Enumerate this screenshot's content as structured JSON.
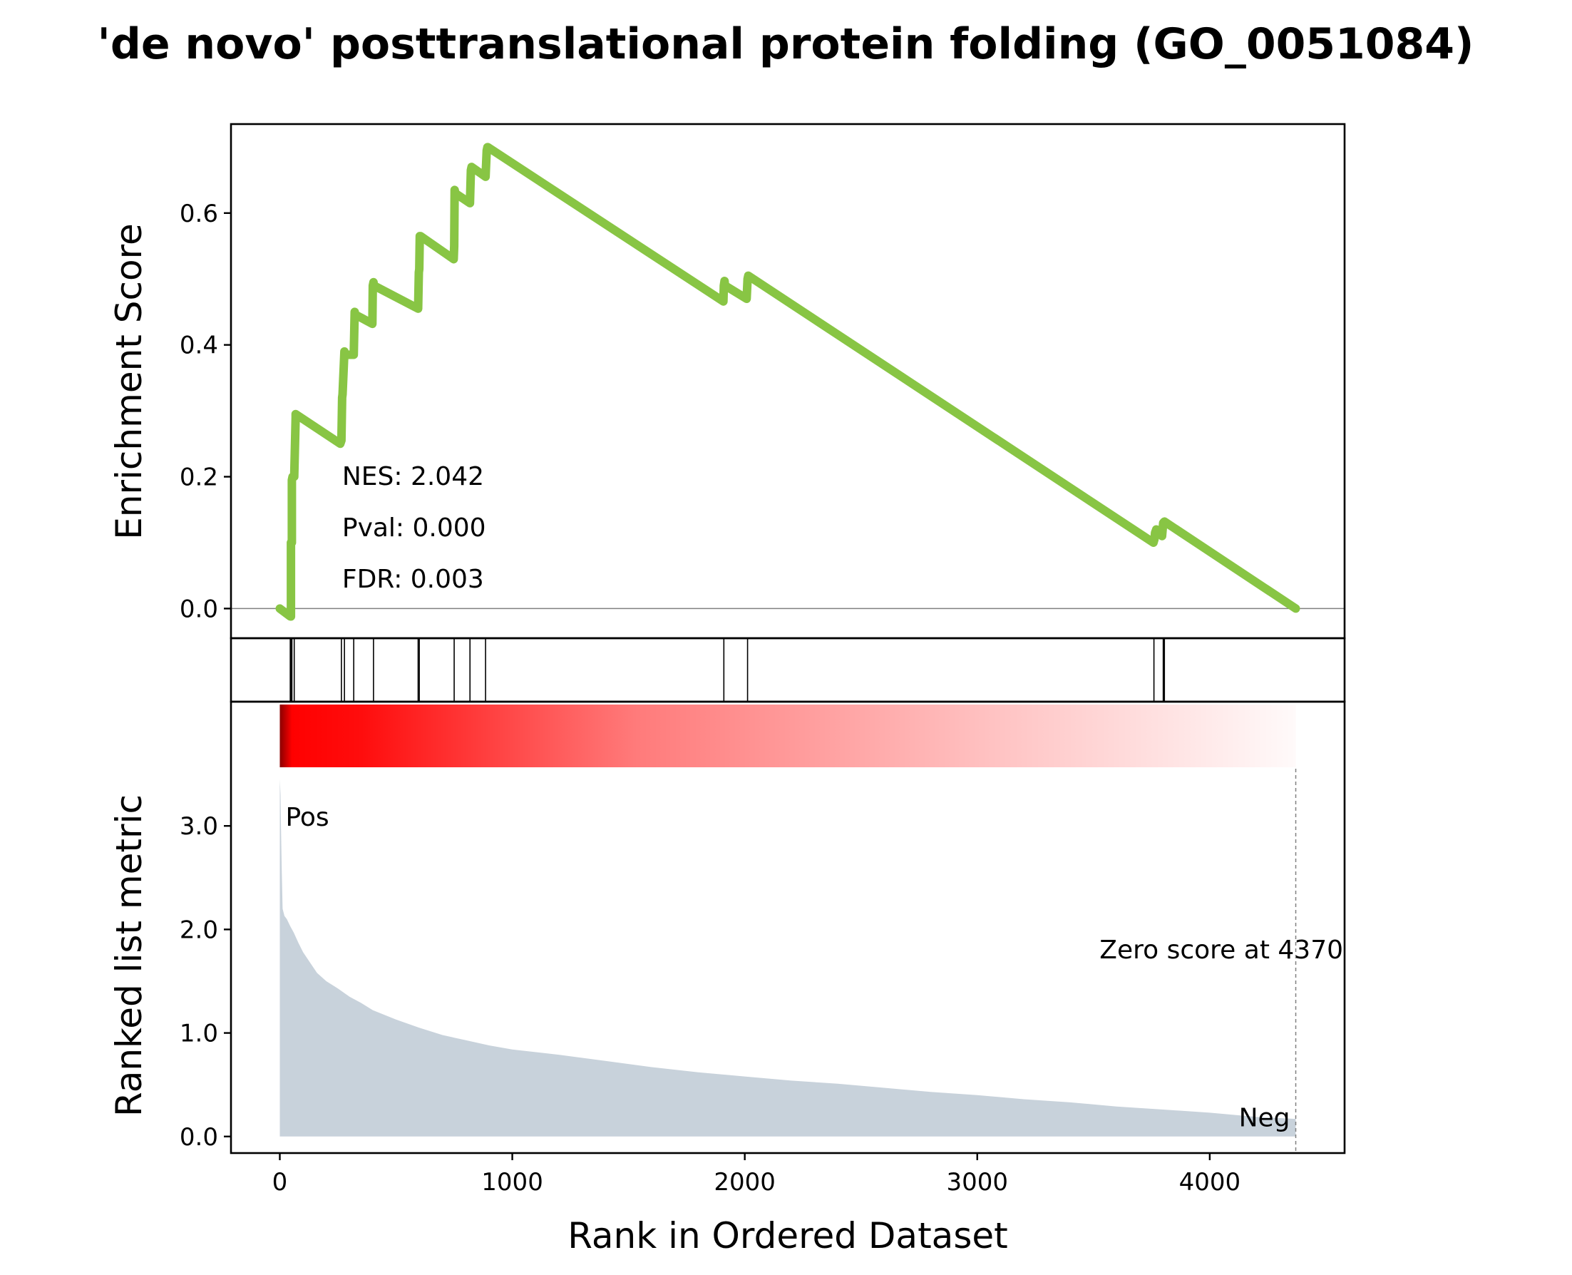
{
  "chart_data": {
    "type": "line",
    "title": "'de novo' posttranslational protein folding (GO_0051084)",
    "xlabel": "Rank in Ordered Dataset",
    "xlim": [
      -210,
      4580
    ],
    "xticks": [
      0,
      1000,
      2000,
      3000,
      4000
    ],
    "panels": {
      "enrichment": {
        "ylabel": "Enrichment Score",
        "ylim": [
          -0.045,
          0.735
        ],
        "yticks": [
          "0.0",
          "0.2",
          "0.4",
          "0.6"
        ],
        "ytick_values": [
          0.0,
          0.2,
          0.4,
          0.6
        ],
        "line_color": "#88c544",
        "baseline": 0,
        "x": [
          0,
          45,
          48,
          48,
          52,
          52,
          55,
          62,
          68,
          68,
          260,
          265,
          268,
          270,
          278,
          280,
          318,
          322,
          325,
          330,
          398,
          400,
          403,
          405,
          595,
          598,
          600,
          602,
          605,
          748,
          750,
          752,
          755,
          818,
          822,
          825,
          885,
          890,
          893,
          895,
          1908,
          1910,
          1913,
          1915,
          2008,
          2012,
          2015,
          3758,
          3762,
          3765,
          3770,
          3795,
          3800,
          3805,
          4370
        ],
        "y": [
          0.0,
          -0.012,
          -0.012,
          0.1,
          0.1,
          0.195,
          0.2,
          0.2,
          0.29,
          0.295,
          0.25,
          0.255,
          0.32,
          0.325,
          0.39,
          0.385,
          0.385,
          0.45,
          0.445,
          0.445,
          0.432,
          0.49,
          0.495,
          0.49,
          0.455,
          0.51,
          0.515,
          0.565,
          0.565,
          0.53,
          0.55,
          0.635,
          0.63,
          0.615,
          0.665,
          0.67,
          0.655,
          0.695,
          0.7,
          0.7,
          0.466,
          0.49,
          0.497,
          0.49,
          0.47,
          0.5,
          0.505,
          0.1,
          0.105,
          0.115,
          0.12,
          0.11,
          0.13,
          0.132,
          0.0
        ],
        "annotations": [
          "NES: 2.042",
          "Pval: 0.000",
          "FDR: 0.003"
        ]
      },
      "hits": {
        "positions": [
          45,
          48,
          52,
          62,
          265,
          278,
          318,
          403,
          595,
          600,
          750,
          818,
          885,
          1910,
          2012,
          3760,
          3800,
          3805
        ]
      },
      "ranked": {
        "ylabel": "Ranked list metric",
        "ylim": [
          -0.16,
          4.2
        ],
        "yticks": [
          "0.0",
          "1.0",
          "2.0",
          "3.0"
        ],
        "ytick_values": [
          0,
          1,
          2,
          3
        ],
        "fill_color": "#c8d2db",
        "heat_color": "#ff0000",
        "x": [
          0,
          3,
          5,
          8,
          12,
          20,
          30,
          45,
          60,
          80,
          100,
          130,
          160,
          200,
          250,
          300,
          350,
          400,
          500,
          600,
          700,
          800,
          900,
          1000,
          1200,
          1400,
          1600,
          1800,
          2000,
          2200,
          2400,
          2600,
          2800,
          3000,
          3200,
          3400,
          3600,
          3800,
          4000,
          4200,
          4370
        ],
        "y": [
          3.45,
          3.3,
          3.0,
          2.6,
          2.2,
          2.13,
          2.1,
          2.03,
          1.97,
          1.87,
          1.78,
          1.68,
          1.58,
          1.5,
          1.43,
          1.35,
          1.29,
          1.22,
          1.13,
          1.05,
          0.98,
          0.93,
          0.88,
          0.84,
          0.79,
          0.73,
          0.67,
          0.62,
          0.58,
          0.54,
          0.51,
          0.47,
          0.43,
          0.4,
          0.36,
          0.33,
          0.29,
          0.26,
          0.23,
          0.19,
          0.17
        ],
        "zero_score_x": 4370,
        "zero_label": "Zero score at 4370",
        "pos_label": "Pos",
        "neg_label": "Neg",
        "pos_color": "#ff0000",
        "neg_color": "#0000ff"
      }
    }
  }
}
